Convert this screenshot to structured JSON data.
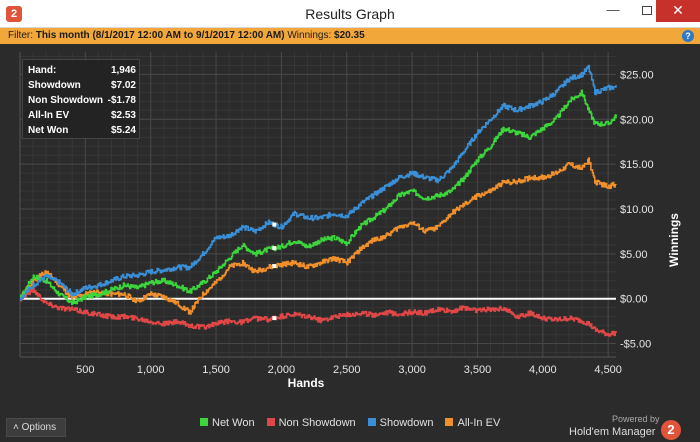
{
  "window": {
    "title": "Results Graph",
    "app_icon_glyph": "2",
    "minimize_glyph": "—",
    "close_glyph": "✕"
  },
  "filter": {
    "label": "Filter:",
    "value": "This month (8/1/2017 12:00 AM to 9/1/2017 12:00 AM)",
    "winnings_label": "Winnings:",
    "winnings_value": "$20.35",
    "help_glyph": "?"
  },
  "stats": [
    {
      "label": "Hand:",
      "value": "1,946"
    },
    {
      "label": "Showdown",
      "value": "$7.02"
    },
    {
      "label": "Non Showdown",
      "value": "-$1.78"
    },
    {
      "label": "All-In EV",
      "value": "$2.53"
    },
    {
      "label": "Net Won",
      "value": "$5.24"
    }
  ],
  "chart_data": {
    "type": "line",
    "xlabel": "Hands",
    "ylabel": "Winnings",
    "xlim": [
      0,
      4560
    ],
    "ylim": [
      -6.5,
      27.5
    ],
    "x_ticks": [
      500,
      1000,
      1500,
      2000,
      2500,
      3000,
      3500,
      4000,
      4500
    ],
    "x_tick_labels": [
      "500",
      "1,000",
      "1,500",
      "2,000",
      "2,500",
      "3,000",
      "3,500",
      "4,000",
      "4,500"
    ],
    "y_ticks": [
      -5,
      0,
      5,
      10,
      15,
      20,
      25
    ],
    "y_tick_labels": [
      "-$5.00",
      "$0.00",
      "$5.00",
      "$10.00",
      "$15.00",
      "$20.00",
      "$25.00"
    ],
    "grid": true,
    "legend_position": "bottom",
    "hover_x": 1946,
    "x": [
      0,
      100,
      200,
      300,
      400,
      500,
      600,
      700,
      800,
      900,
      1000,
      1100,
      1200,
      1300,
      1400,
      1500,
      1600,
      1700,
      1800,
      1900,
      2000,
      2100,
      2200,
      2300,
      2400,
      2500,
      2600,
      2700,
      2800,
      2900,
      3000,
      3100,
      3200,
      3300,
      3400,
      3500,
      3600,
      3700,
      3800,
      3900,
      4000,
      4100,
      4200,
      4300,
      4350,
      4400,
      4500,
      4560
    ],
    "series": [
      {
        "name": "Net Won",
        "color": "#3cd63c",
        "values": [
          0,
          2.5,
          2.0,
          0.5,
          -0.5,
          0.2,
          0.5,
          1.0,
          1.5,
          1.2,
          1.8,
          2.0,
          1.5,
          0.8,
          1.8,
          3.0,
          4.5,
          6.0,
          5.0,
          5.5,
          5.8,
          6.5,
          5.8,
          6.5,
          6.8,
          6.2,
          8.0,
          9.0,
          10.0,
          11.5,
          12.0,
          11.2,
          11.5,
          12.0,
          13.5,
          15.5,
          17.0,
          19.0,
          18.5,
          18.0,
          19.0,
          20.0,
          22.0,
          23.0,
          21.0,
          19.5,
          19.5,
          20.35
        ]
      },
      {
        "name": "Non Showdown",
        "color": "#e04848",
        "values": [
          0,
          1.0,
          -0.5,
          -1.0,
          -1.2,
          -1.5,
          -1.8,
          -2.0,
          -2.0,
          -2.2,
          -2.5,
          -2.8,
          -2.6,
          -3.0,
          -3.2,
          -2.8,
          -2.5,
          -2.6,
          -2.2,
          -2.3,
          -2.0,
          -1.8,
          -2.0,
          -2.4,
          -2.0,
          -1.8,
          -1.6,
          -1.8,
          -1.5,
          -1.7,
          -1.5,
          -1.6,
          -1.2,
          -1.4,
          -1.0,
          -1.3,
          -1.2,
          -1.0,
          -2.0,
          -1.6,
          -2.2,
          -2.4,
          -2.2,
          -2.5,
          -2.8,
          -3.5,
          -4.0,
          -3.8
        ]
      },
      {
        "name": "Showdown",
        "color": "#3a8fd6",
        "values": [
          0,
          1.5,
          2.5,
          1.8,
          0.5,
          1.2,
          1.5,
          2.0,
          2.5,
          2.6,
          3.0,
          3.2,
          3.5,
          3.5,
          5.0,
          6.8,
          7.0,
          8.0,
          7.5,
          8.5,
          8.0,
          9.5,
          9.0,
          9.0,
          9.5,
          9.2,
          10.5,
          11.5,
          12.5,
          13.5,
          14.0,
          13.5,
          13.2,
          14.5,
          16.5,
          18.5,
          20.0,
          21.5,
          21.0,
          21.5,
          22.0,
          23.0,
          24.5,
          25.0,
          25.8,
          23.0,
          23.5,
          23.6
        ]
      },
      {
        "name": "All-In EV",
        "color": "#f0902c",
        "values": [
          0,
          2.0,
          3.0,
          1.5,
          0,
          0.5,
          0.8,
          0.5,
          0.5,
          -0.3,
          0.5,
          0.2,
          -0.5,
          -1.5,
          0.5,
          1.8,
          3.5,
          4.0,
          3.0,
          3.5,
          3.8,
          4.0,
          3.5,
          4.0,
          4.5,
          4.0,
          5.5,
          6.5,
          7.0,
          8.0,
          8.5,
          7.5,
          8.0,
          9.5,
          10.5,
          11.5,
          12.0,
          13.0,
          13.0,
          13.5,
          13.5,
          14.0,
          15.0,
          14.5,
          15.5,
          13.0,
          12.5,
          12.8
        ]
      }
    ]
  },
  "footer": {
    "options_label": "Options",
    "options_glyph": "˄",
    "powered_by": "Powered by",
    "brand": "Hold'em Manager",
    "brand_badge": "2"
  }
}
